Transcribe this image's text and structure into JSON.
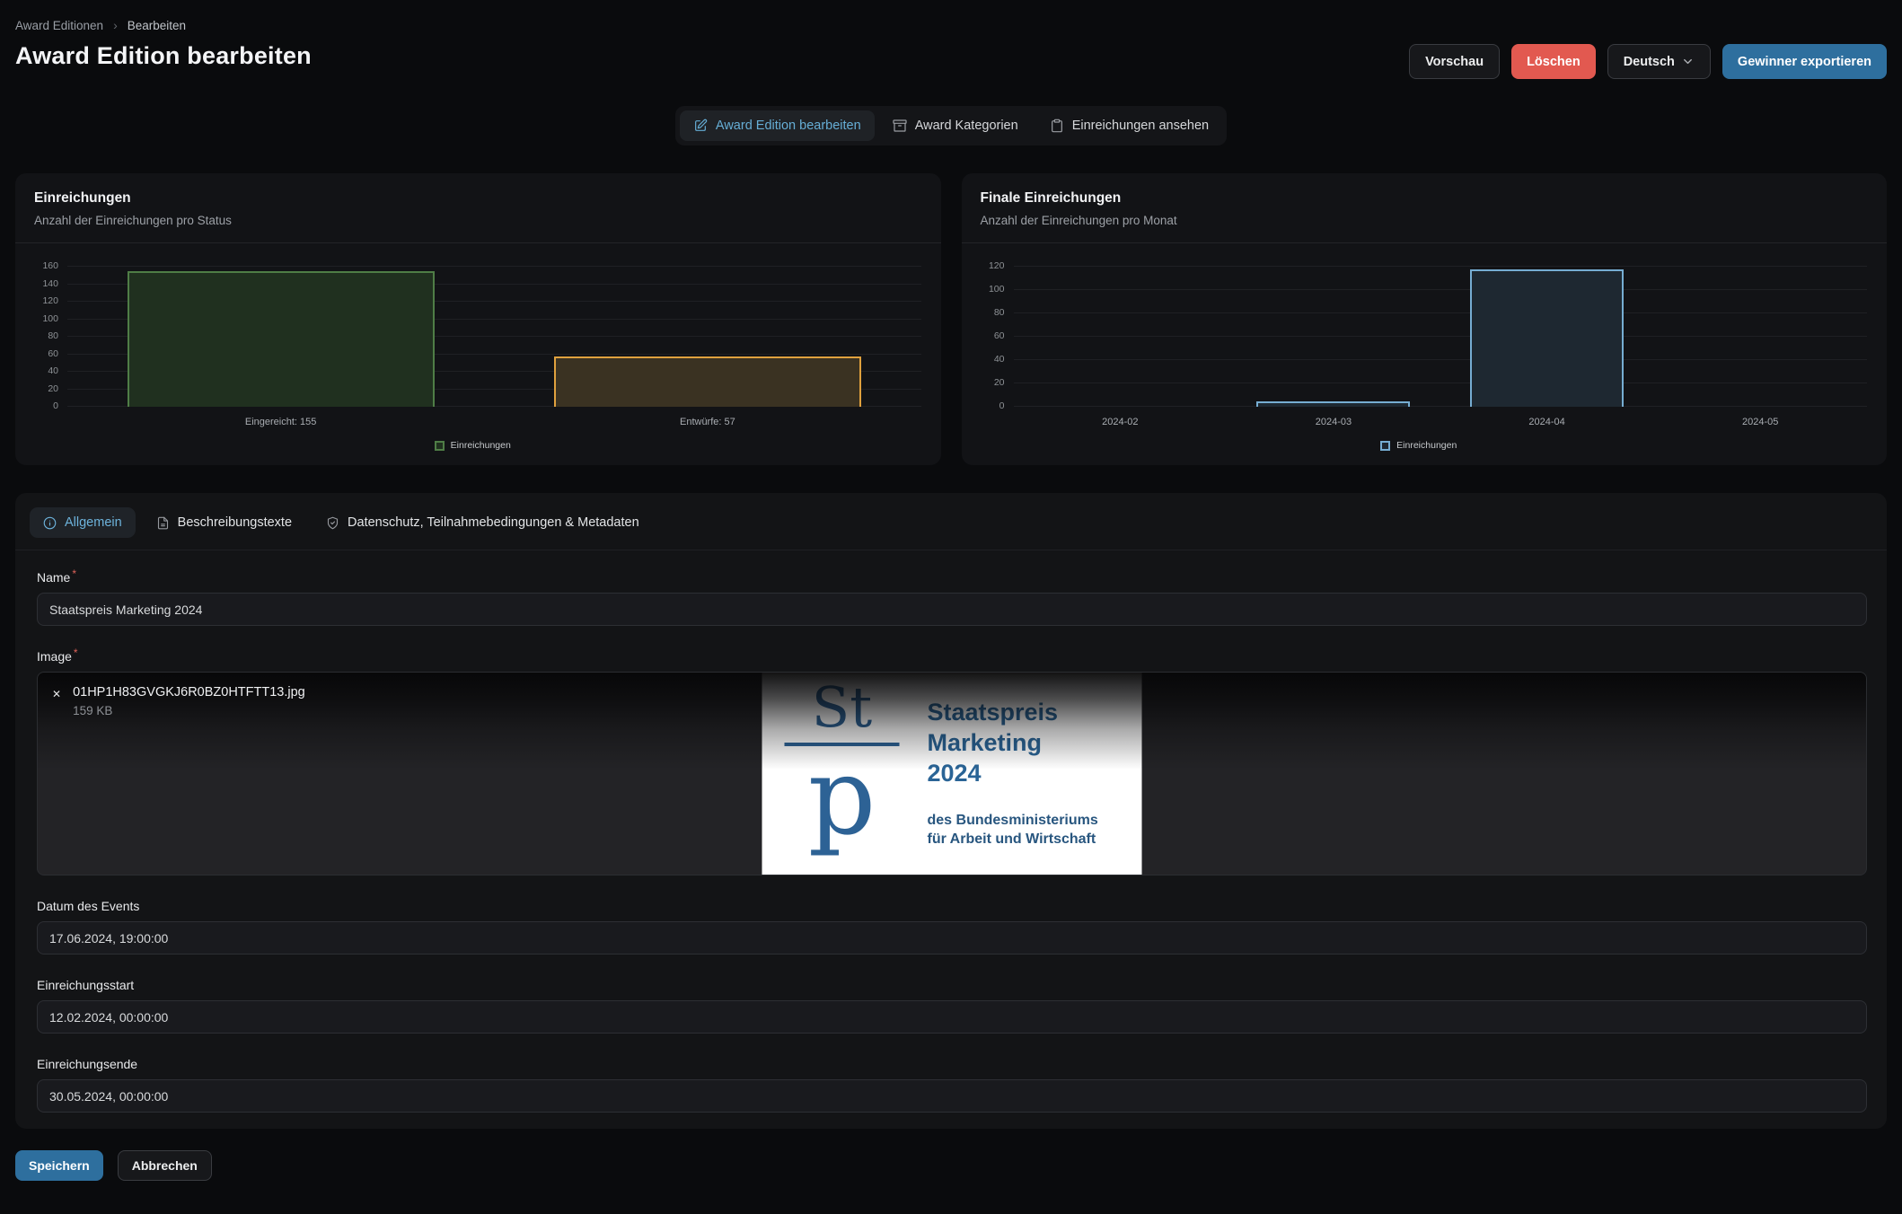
{
  "breadcrumb": {
    "items": [
      "Award Editionen",
      "Bearbeiten"
    ],
    "separator": "›"
  },
  "header": {
    "title": "Award Edition bearbeiten",
    "preview_button": "Vorschau",
    "delete_button": "Löschen",
    "language_select": "Deutsch",
    "export_button": "Gewinner exportieren"
  },
  "nav_tabs": [
    {
      "label": "Award Edition bearbeiten",
      "icon": "edit-icon",
      "active": true
    },
    {
      "label": "Award Kategorien",
      "icon": "archive-icon",
      "active": false
    },
    {
      "label": "Einreichungen ansehen",
      "icon": "clipboard-icon",
      "active": false
    }
  ],
  "chart_data": [
    {
      "type": "bar",
      "title": "Einreichungen",
      "subtitle": "Anzahl der Einreichungen pro Status",
      "categories": [
        "Eingereicht: 155",
        "Entwürfe: 57"
      ],
      "values": [
        155,
        57
      ],
      "ylim": [
        0,
        160
      ],
      "ytick_step": 20,
      "grid": true,
      "legend": [
        "Einreichungen"
      ],
      "legend_position": "bottom",
      "bar_styles": [
        {
          "fill": "#20301f",
          "border": "#4f7d46"
        },
        {
          "fill": "#3a3222",
          "border": "#e0a13e"
        }
      ],
      "legend_style": {
        "fill": "#20301f",
        "border": "#4f7d46"
      }
    },
    {
      "type": "bar",
      "title": "Finale Einreichungen",
      "subtitle": "Anzahl der Einreichungen pro Monat",
      "categories": [
        "2024-02",
        "2024-03",
        "2024-04",
        "2024-05"
      ],
      "values": [
        0,
        5,
        118,
        0
      ],
      "ylim": [
        0,
        120
      ],
      "ytick_step": 20,
      "grid": true,
      "legend": [
        "Einreichungen"
      ],
      "legend_position": "bottom",
      "bar_styles": [
        {
          "fill": "#1e2831",
          "border": "#76add2"
        },
        {
          "fill": "#1e2831",
          "border": "#76add2"
        },
        {
          "fill": "#1e2831",
          "border": "#76add2"
        },
        {
          "fill": "#1e2831",
          "border": "#76add2"
        }
      ],
      "legend_style": {
        "fill": "#1e2831",
        "border": "#76add2"
      }
    }
  ],
  "form": {
    "required_marker": "*",
    "tabs": [
      {
        "label": "Allgemein",
        "icon": "info-icon",
        "active": true
      },
      {
        "label": "Beschreibungstexte",
        "icon": "document-icon",
        "active": false
      },
      {
        "label": "Datenschutz, Teilnahmebedingungen & Metadaten",
        "icon": "shield-icon",
        "active": false
      }
    ],
    "name_field": {
      "label": "Name",
      "value": "Staatspreis Marketing 2024"
    },
    "image_field": {
      "label": "Image",
      "file_name": "01HP1H83GVGKJ6R0BZ0HTFTT13.jpg",
      "file_size": "159 KB",
      "remove_glyph": "✕"
    },
    "image_preview": {
      "monogram_top": "St",
      "monogram_bottom": "p",
      "title_lines": [
        "Staatspreis",
        "Marketing",
        "2024"
      ],
      "subtitle_lines": [
        "des Bundesministeriums",
        "für Arbeit und Wirtschaft"
      ]
    },
    "event_date_field": {
      "label": "Datum des Events",
      "value": "17.06.2024, 19:00:00"
    },
    "submission_start_field": {
      "label": "Einreichungsstart",
      "value": "12.02.2024, 00:00:00"
    },
    "submission_end_field": {
      "label": "Einreichungsende",
      "value": "30.05.2024, 00:00:00"
    }
  },
  "footer": {
    "save_button": "Speichern",
    "cancel_button": "Abbrechen"
  },
  "colors": {
    "accent_blue": "#2e6f9e",
    "danger_red": "#e25950",
    "active_tab_text": "#66aed6",
    "required_asterisk": "#e0635a",
    "card_background": "#121316",
    "page_background": "#0a0b0d"
  }
}
